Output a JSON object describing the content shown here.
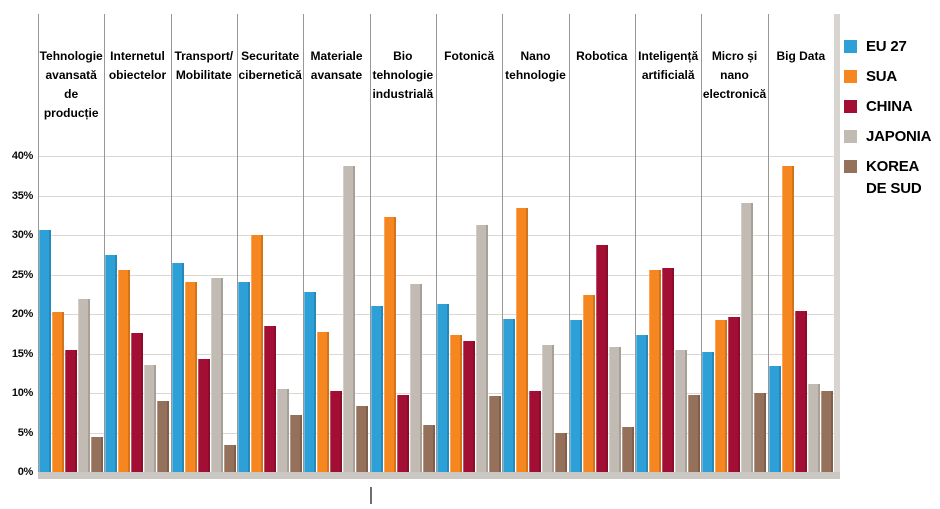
{
  "chart_data": {
    "type": "bar",
    "title": "",
    "xlabel": "",
    "ylabel": "",
    "ylim": [
      0,
      40
    ],
    "yticks": [
      "40%",
      "35%",
      "30%",
      "25%",
      "20%",
      "15%",
      "10%",
      "5%",
      "0%"
    ],
    "grid": true,
    "legend_position": "right",
    "categories": [
      "Tehnologie avansată de producție",
      "Internetul obiectelor",
      "Transport/ Mobilitate",
      "Securitate cibernetică",
      "Materiale avansate",
      "Bio tehnologie industrială",
      "Fotonică",
      "Nano tehnologie",
      "Robotica",
      "Inteligență artificială",
      "Micro și nano electronică",
      "Big Data"
    ],
    "series": [
      {
        "name": "EU 27",
        "color": "#2EA0D8",
        "values": [
          30.6,
          27.5,
          26.5,
          24.0,
          22.8,
          21.0,
          21.3,
          19.4,
          19.2,
          17.3,
          15.2,
          13.4
        ]
      },
      {
        "name": "SUA",
        "color": "#F6861F",
        "values": [
          20.2,
          25.6,
          24.0,
          30.0,
          17.7,
          32.3,
          17.3,
          33.4,
          22.4,
          25.6,
          19.3,
          38.8
        ]
      },
      {
        "name": "CHINA",
        "color": "#A30E34",
        "values": [
          15.4,
          17.6,
          14.3,
          18.5,
          10.3,
          9.8,
          16.6,
          10.3,
          28.8,
          25.8,
          19.6,
          20.4
        ]
      },
      {
        "name": "JAPONIA",
        "color": "#C2BBB3",
        "values": [
          21.9,
          13.5,
          24.6,
          10.5,
          38.7,
          23.8,
          31.3,
          16.1,
          15.8,
          15.5,
          34.0,
          11.2
        ]
      },
      {
        "name": "KOREA DE SUD",
        "color": "#95705A",
        "values": [
          4.4,
          9.0,
          3.4,
          7.2,
          8.4,
          6.0,
          9.6,
          4.9,
          5.7,
          9.7,
          10.0,
          10.3
        ]
      }
    ]
  },
  "colors": {
    "background": "#FFFFFF",
    "gridline": "#DBD8D4",
    "divider": "#9A9693",
    "right_edge_strip": "#D8D5D1",
    "baseline_strip": "#CBC8C3",
    "text": "#000000"
  }
}
